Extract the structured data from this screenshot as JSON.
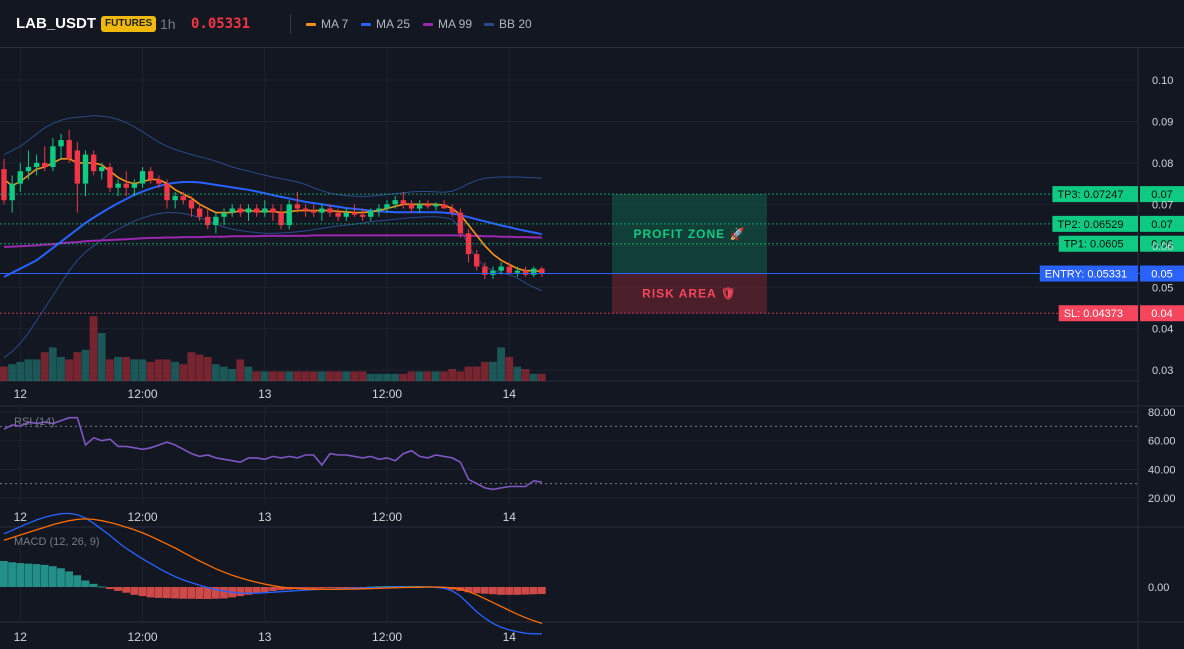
{
  "header": {
    "symbol": "LAB_USDT",
    "badge": "FUTURES",
    "timeframe": "1h",
    "price": "0.05331",
    "legend": [
      {
        "label": "MA 7",
        "color": "#f7931a"
      },
      {
        "label": "MA 25",
        "color": "#2962ff"
      },
      {
        "label": "MA 99",
        "color": "#9c27b0"
      },
      {
        "label": "BB 20",
        "color": "#2a4a8a"
      }
    ]
  },
  "colors": {
    "up": "#26a69a",
    "up_bright": "#0ecb81",
    "down": "#f23645",
    "background": "#131722",
    "grid": "#1e222d",
    "entry": "#2962ff",
    "tp": "#0ecb81",
    "sl": "#f6465d"
  },
  "annotations": {
    "profit_zone": "PROFIT ZONE 🚀",
    "risk_area": "RISK AREA 🛡",
    "labels": [
      {
        "id": "tp3",
        "text": "TP3: 0.07247",
        "axis_text": "0.07",
        "price": 0.07247
      },
      {
        "id": "tp2",
        "text": "TP2: 0.06529",
        "axis_text": "0.07",
        "price": 0.06529
      },
      {
        "id": "tp1",
        "text": "TP1: 0.0605",
        "axis_text": "0.06",
        "price": 0.0605
      },
      {
        "id": "entry",
        "text": "ENTRY: 0.05331",
        "axis_text": "0.05",
        "price": 0.05331
      },
      {
        "id": "sl",
        "text": "SL: 0.04373",
        "axis_text": "0.04",
        "price": 0.04373
      }
    ]
  },
  "panels": {
    "rsi_label": "RSI (14)",
    "macd_label": "MACD (12, 26, 9)"
  },
  "chart_data": {
    "type": "candlestick",
    "x_ticks": [
      "12",
      "12:00",
      "13",
      "12:00",
      "14"
    ],
    "x_tick_index": [
      2,
      17,
      32,
      47,
      62
    ],
    "price_axis": {
      "ticks": [
        "0.10",
        "0.09",
        "0.08",
        "0.07",
        "0.06",
        "0.05",
        "0.04",
        "0.03"
      ],
      "tick_values": [
        0.1,
        0.09,
        0.08,
        0.07,
        0.06,
        0.05,
        0.04,
        0.03
      ],
      "range": [
        0.028,
        0.102
      ]
    },
    "rsi_axis": {
      "ticks": [
        "80.00",
        "60.00",
        "40.00",
        "20.00"
      ],
      "tick_values": [
        80,
        60,
        40,
        20
      ],
      "range": [
        15,
        82
      ],
      "levels": [
        70,
        30
      ]
    },
    "macd_axis": {
      "ticks": [
        "0.00"
      ],
      "tick_values": [
        0
      ]
    },
    "candles": [
      [
        0.0785,
        0.081,
        0.07,
        0.071
      ],
      [
        0.071,
        0.077,
        0.068,
        0.075
      ],
      [
        0.075,
        0.08,
        0.073,
        0.078
      ],
      [
        0.078,
        0.083,
        0.076,
        0.079
      ],
      [
        0.079,
        0.082,
        0.077,
        0.08
      ],
      [
        0.08,
        0.084,
        0.078,
        0.079
      ],
      [
        0.079,
        0.086,
        0.078,
        0.084
      ],
      [
        0.084,
        0.087,
        0.081,
        0.0855
      ],
      [
        0.0855,
        0.088,
        0.08,
        0.081
      ],
      [
        0.083,
        0.085,
        0.068,
        0.075
      ],
      [
        0.075,
        0.083,
        0.072,
        0.082
      ],
      [
        0.082,
        0.083,
        0.077,
        0.078
      ],
      [
        0.078,
        0.08,
        0.076,
        0.079
      ],
      [
        0.079,
        0.08,
        0.073,
        0.074
      ],
      [
        0.074,
        0.076,
        0.072,
        0.075
      ],
      [
        0.075,
        0.078,
        0.072,
        0.074
      ],
      [
        0.074,
        0.076,
        0.072,
        0.075
      ],
      [
        0.075,
        0.079,
        0.074,
        0.078
      ],
      [
        0.078,
        0.079,
        0.075,
        0.076
      ],
      [
        0.076,
        0.077,
        0.074,
        0.075
      ],
      [
        0.075,
        0.076,
        0.069,
        0.071
      ],
      [
        0.071,
        0.073,
        0.069,
        0.072
      ],
      [
        0.072,
        0.073,
        0.07,
        0.071
      ],
      [
        0.071,
        0.072,
        0.067,
        0.069
      ],
      [
        0.069,
        0.07,
        0.066,
        0.067
      ],
      [
        0.067,
        0.069,
        0.064,
        0.065
      ],
      [
        0.065,
        0.068,
        0.063,
        0.067
      ],
      [
        0.067,
        0.069,
        0.065,
        0.068
      ],
      [
        0.068,
        0.07,
        0.067,
        0.069
      ],
      [
        0.069,
        0.07,
        0.067,
        0.068
      ],
      [
        0.068,
        0.07,
        0.066,
        0.069
      ],
      [
        0.069,
        0.07,
        0.067,
        0.068
      ],
      [
        0.068,
        0.071,
        0.067,
        0.069
      ],
      [
        0.069,
        0.07,
        0.066,
        0.068
      ],
      [
        0.068,
        0.07,
        0.064,
        0.065
      ],
      [
        0.065,
        0.071,
        0.064,
        0.07
      ],
      [
        0.07,
        0.073,
        0.068,
        0.069
      ],
      [
        0.069,
        0.07,
        0.067,
        0.0685
      ],
      [
        0.0685,
        0.07,
        0.067,
        0.068
      ],
      [
        0.068,
        0.07,
        0.066,
        0.069
      ],
      [
        0.069,
        0.07,
        0.067,
        0.068
      ],
      [
        0.068,
        0.069,
        0.066,
        0.067
      ],
      [
        0.067,
        0.069,
        0.066,
        0.068
      ],
      [
        0.068,
        0.07,
        0.067,
        0.0675
      ],
      [
        0.0675,
        0.069,
        0.066,
        0.067
      ],
      [
        0.067,
        0.069,
        0.066,
        0.0685
      ],
      [
        0.0685,
        0.07,
        0.067,
        0.069
      ],
      [
        0.069,
        0.071,
        0.068,
        0.07
      ],
      [
        0.07,
        0.072,
        0.069,
        0.071
      ],
      [
        0.071,
        0.073,
        0.069,
        0.07
      ],
      [
        0.07,
        0.071,
        0.068,
        0.069
      ],
      [
        0.069,
        0.071,
        0.068,
        0.07
      ],
      [
        0.07,
        0.071,
        0.069,
        0.0695
      ],
      [
        0.0695,
        0.0705,
        0.0685,
        0.07
      ],
      [
        0.07,
        0.071,
        0.069,
        0.069
      ],
      [
        0.069,
        0.07,
        0.067,
        0.068
      ],
      [
        0.068,
        0.069,
        0.062,
        0.063
      ],
      [
        0.063,
        0.064,
        0.056,
        0.058
      ],
      [
        0.058,
        0.059,
        0.054,
        0.055
      ],
      [
        0.055,
        0.056,
        0.052,
        0.053
      ],
      [
        0.053,
        0.055,
        0.052,
        0.054
      ],
      [
        0.054,
        0.056,
        0.053,
        0.055
      ],
      [
        0.055,
        0.056,
        0.053,
        0.0535
      ],
      [
        0.0535,
        0.055,
        0.0525,
        0.054
      ],
      [
        0.054,
        0.055,
        0.0525,
        0.053
      ],
      [
        0.053,
        0.055,
        0.0525,
        0.0545
      ],
      [
        0.0545,
        0.055,
        0.0525,
        0.0533
      ]
    ],
    "volume": [
      6,
      7,
      8,
      9,
      9,
      12,
      14,
      10,
      9,
      12,
      13,
      27,
      20,
      9,
      10,
      10,
      9,
      9,
      8,
      9,
      9,
      8,
      7,
      12,
      11,
      10,
      7,
      6,
      5,
      9,
      6,
      4,
      4,
      4,
      4,
      4,
      4,
      4,
      4,
      4,
      4,
      4,
      4,
      4,
      4,
      3,
      3,
      3,
      3,
      3,
      4,
      4,
      4,
      4,
      4,
      5,
      4,
      6,
      6,
      8,
      8,
      14,
      10,
      6,
      5,
      3,
      3
    ],
    "ma7": [
      0.076,
      0.0745,
      0.0755,
      0.077,
      0.0785,
      0.079,
      0.08,
      0.081,
      0.081,
      0.08,
      0.08,
      0.08,
      0.0795,
      0.078,
      0.0765,
      0.0755,
      0.075,
      0.0755,
      0.076,
      0.076,
      0.075,
      0.0735,
      0.0725,
      0.0715,
      0.07,
      0.069,
      0.068,
      0.068,
      0.068,
      0.0685,
      0.0685,
      0.0683,
      0.0683,
      0.0683,
      0.068,
      0.0682,
      0.0685,
      0.0685,
      0.0685,
      0.0685,
      0.0685,
      0.0683,
      0.0682,
      0.068,
      0.068,
      0.0682,
      0.0685,
      0.069,
      0.0695,
      0.07,
      0.07,
      0.07,
      0.07,
      0.07,
      0.0698,
      0.069,
      0.0675,
      0.065,
      0.0625,
      0.06,
      0.058,
      0.0565,
      0.0555,
      0.0545,
      0.054,
      0.054,
      0.0538
    ],
    "ma25": [
      0.0525,
      0.0535,
      0.0545,
      0.0555,
      0.0565,
      0.058,
      0.0595,
      0.061,
      0.0625,
      0.064,
      0.0655,
      0.0668,
      0.068,
      0.0692,
      0.0703,
      0.0713,
      0.0723,
      0.0731,
      0.0738,
      0.0744,
      0.0749,
      0.0752,
      0.0754,
      0.0754,
      0.0753,
      0.075,
      0.0747,
      0.0744,
      0.0741,
      0.0738,
      0.0735,
      0.0731,
      0.0727,
      0.0722,
      0.0718,
      0.0714,
      0.071,
      0.0706,
      0.0703,
      0.07,
      0.0697,
      0.0694,
      0.0691,
      0.0689,
      0.0687,
      0.0685,
      0.0683,
      0.0682,
      0.0681,
      0.0681,
      0.0681,
      0.0681,
      0.0681,
      0.0681,
      0.068,
      0.0678,
      0.0674,
      0.0669,
      0.0664,
      0.0659,
      0.0654,
      0.0649,
      0.0645,
      0.064,
      0.0636,
      0.0632,
      0.0628
    ],
    "ma99": [
      0.0597,
      0.0598,
      0.0599,
      0.06,
      0.0601,
      0.0603,
      0.0604,
      0.0606,
      0.0608,
      0.0609,
      0.0611,
      0.0612,
      0.0613,
      0.0614,
      0.0615,
      0.0616,
      0.0617,
      0.0618,
      0.0619,
      0.0619,
      0.062,
      0.062,
      0.0621,
      0.0621,
      0.0621,
      0.0622,
      0.0622,
      0.0622,
      0.0623,
      0.0623,
      0.0623,
      0.0623,
      0.0624,
      0.0624,
      0.0624,
      0.0624,
      0.0624,
      0.0624,
      0.0625,
      0.0625,
      0.0625,
      0.0625,
      0.0625,
      0.0625,
      0.0625,
      0.0625,
      0.0625,
      0.0625,
      0.0625,
      0.0625,
      0.0625,
      0.0625,
      0.0625,
      0.0625,
      0.0625,
      0.0625,
      0.0625,
      0.0624,
      0.0624,
      0.0623,
      0.0623,
      0.0622,
      0.0622,
      0.0621,
      0.0621,
      0.062,
      0.062
    ],
    "bb_upper": [
      0.082,
      0.083,
      0.084,
      0.0855,
      0.087,
      0.0885,
      0.0895,
      0.0903,
      0.0908,
      0.091,
      0.0912,
      0.0914,
      0.0913,
      0.091,
      0.0905,
      0.0897,
      0.0887,
      0.0875,
      0.0862,
      0.085,
      0.084,
      0.0832,
      0.0826,
      0.082,
      0.0815,
      0.081,
      0.0804,
      0.0797,
      0.079,
      0.0785,
      0.078,
      0.0775,
      0.077,
      0.0766,
      0.0762,
      0.0758,
      0.0754,
      0.0748,
      0.074,
      0.0733,
      0.0727,
      0.0723,
      0.0721,
      0.072,
      0.0719,
      0.072,
      0.0722,
      0.0724,
      0.0726,
      0.0728,
      0.073,
      0.0731,
      0.0731,
      0.073,
      0.0729,
      0.0732,
      0.074,
      0.075,
      0.0758,
      0.0763,
      0.0765,
      0.0766,
      0.0766,
      0.0766,
      0.0765,
      0.0764,
      0.0763
    ],
    "bb_lower": [
      0.033,
      0.0345,
      0.0365,
      0.039,
      0.042,
      0.045,
      0.048,
      0.051,
      0.054,
      0.0565,
      0.0585,
      0.06,
      0.0615,
      0.063,
      0.064,
      0.065,
      0.066,
      0.0667,
      0.0673,
      0.0678,
      0.068,
      0.068,
      0.0678,
      0.0674,
      0.0668,
      0.066,
      0.0652,
      0.0645,
      0.064,
      0.0637,
      0.0634,
      0.0632,
      0.063,
      0.063,
      0.0631,
      0.0632,
      0.0634,
      0.0636,
      0.0639,
      0.0642,
      0.0645,
      0.0648,
      0.065,
      0.0652,
      0.0655,
      0.0658,
      0.066,
      0.0662,
      0.0664,
      0.0666,
      0.0668,
      0.0669,
      0.067,
      0.067,
      0.0668,
      0.0664,
      0.064,
      0.06,
      0.057,
      0.055,
      0.054,
      0.0535,
      0.053,
      0.0522,
      0.051,
      0.05,
      0.0492
    ],
    "rsi": [
      68,
      71,
      70,
      73,
      72,
      73,
      72,
      74,
      76,
      76,
      57,
      62,
      60,
      61,
      56,
      56,
      55,
      54,
      55,
      57,
      59,
      57,
      54,
      51,
      49,
      50,
      48,
      47,
      46,
      45,
      48,
      48,
      47,
      49,
      48,
      49,
      48,
      50,
      50,
      43,
      51,
      50,
      50,
      49,
      48,
      49,
      47,
      48,
      46,
      51,
      53,
      49,
      48,
      50,
      49,
      48,
      45,
      33,
      30,
      27,
      26,
      27,
      28,
      28,
      28,
      32,
      31
    ],
    "macd": [
      0.00205,
      0.00218,
      0.00232,
      0.00245,
      0.00258,
      0.00268,
      0.00276,
      0.00282,
      0.00283,
      0.00278,
      0.00265,
      0.00245,
      0.00222,
      0.00198,
      0.00172,
      0.00148,
      0.00128,
      0.00108,
      0.0009,
      0.00072,
      0.00055,
      0.0004,
      0.00027,
      0.00017,
      7e-05,
      -2e-05,
      -0.0001,
      -0.00016,
      -0.0002,
      -0.00023,
      -0.00024,
      -0.00024,
      -0.00022,
      -0.0002,
      -0.00018,
      -0.00016,
      -0.00014,
      -0.00012,
      -0.0001,
      -9e-05,
      -8e-05,
      -7e-05,
      -6e-05,
      -5e-05,
      -4e-05,
      -3e-05,
      -2e-05,
      -1e-05,
      0.0,
      0.0,
      0.0,
      0.0,
      0.0,
      -1e-05,
      -5e-05,
      -0.00015,
      -0.00035,
      -0.00065,
      -0.00095,
      -0.0012,
      -0.0014,
      -0.00155,
      -0.00165,
      -0.00172,
      -0.00178,
      -0.0018,
      -0.0018
    ],
    "macd_signal": [
      0.0018,
      0.0019,
      0.002,
      0.0021,
      0.0022,
      0.0023,
      0.0024,
      0.00248,
      0.00255,
      0.0026,
      0.00262,
      0.0026,
      0.00255,
      0.00248,
      0.0024,
      0.0023,
      0.0022,
      0.00208,
      0.00195,
      0.0018,
      0.00165,
      0.0015,
      0.00133,
      0.00116,
      0.001,
      0.00085,
      0.0007,
      0.00057,
      0.00045,
      0.00035,
      0.00026,
      0.00018,
      0.00011,
      5e-05,
      0.0,
      -4e-05,
      -6e-05,
      -8e-05,
      -9e-05,
      -9e-05,
      -9e-05,
      -9e-05,
      -8e-05,
      -8e-05,
      -7e-05,
      -6e-05,
      -5e-05,
      -4e-05,
      -3e-05,
      -2e-05,
      -1e-05,
      -1e-05,
      0.0,
      0.0,
      -1e-05,
      -3e-05,
      -8e-05,
      -0.00018,
      -0.0003,
      -0.00045,
      -0.0006,
      -0.00075,
      -0.0009,
      -0.00105,
      -0.00118,
      -0.0013,
      -0.0014
    ],
    "macd_hist": [
      0.001,
      0.00095,
      0.00092,
      0.0009,
      0.00088,
      0.00085,
      0.0008,
      0.00072,
      0.0006,
      0.00045,
      0.00025,
      0.00012,
      2e-05,
      -8e-05,
      -0.00015,
      -0.00022,
      -0.0003,
      -0.00035,
      -0.0004,
      -0.00042,
      -0.00043,
      -0.00044,
      -0.00045,
      -0.00045,
      -0.00046,
      -0.00046,
      -0.00045,
      -0.00044,
      -0.0004,
      -0.00035,
      -0.0003,
      -0.00025,
      -0.0002,
      -0.00015,
      -0.00012,
      -0.0001,
      -8e-05,
      -7e-05,
      -6e-05,
      -5e-05,
      -4e-05,
      -3e-05,
      -2e-05,
      -2e-05,
      -1e-05,
      2e-05,
      3e-05,
      4e-05,
      4e-05,
      4e-05,
      4e-05,
      4e-05,
      3e-05,
      2e-05,
      -3e-05,
      -0.0001,
      -0.00015,
      -0.0002,
      -0.00024,
      -0.00026,
      -0.00028,
      -0.0003,
      -0.0003,
      -0.0003,
      -0.00029,
      -0.00028,
      -0.00027
    ]
  }
}
